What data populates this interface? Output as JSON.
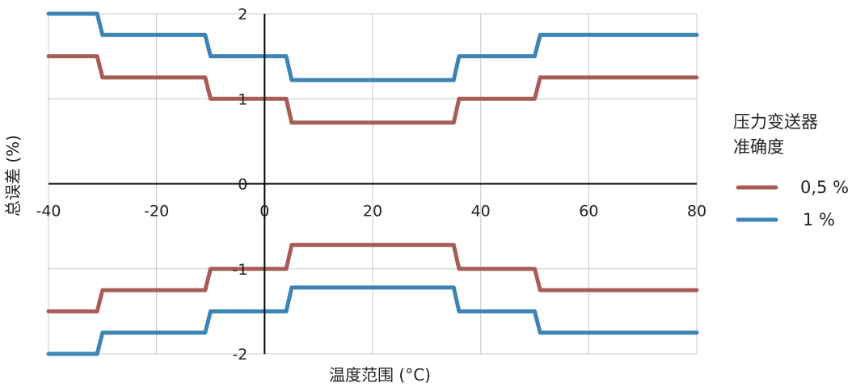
{
  "chart_data": {
    "type": "line",
    "xlabel": "温度范围 (°C)",
    "ylabel": "总误差 (%)",
    "xlim": [
      -40,
      80
    ],
    "ylim": [
      -2,
      2
    ],
    "xticks": [
      -40,
      -20,
      0,
      20,
      40,
      60,
      80
    ],
    "yticks": [
      -2,
      -1,
      0,
      1,
      2
    ],
    "grid": true,
    "legend": {
      "title_lines": [
        "压力变送器",
        "准确度"
      ],
      "placement": "right"
    },
    "series": [
      {
        "name": "0,5 %",
        "color": "#a75d57",
        "curves": [
          [
            [
              -40,
              1.5
            ],
            [
              -31,
              1.5
            ],
            [
              -30,
              1.25
            ],
            [
              -11,
              1.25
            ],
            [
              -10,
              1.0
            ],
            [
              4,
              1.0
            ],
            [
              5,
              0.72
            ],
            [
              35,
              0.72
            ],
            [
              36,
              1.0
            ],
            [
              50,
              1.0
            ],
            [
              51,
              1.25
            ],
            [
              80,
              1.25
            ]
          ],
          [
            [
              -40,
              -1.5
            ],
            [
              -31,
              -1.5
            ],
            [
              -30,
              -1.25
            ],
            [
              -11,
              -1.25
            ],
            [
              -10,
              -1.0
            ],
            [
              4,
              -1.0
            ],
            [
              5,
              -0.72
            ],
            [
              35,
              -0.72
            ],
            [
              36,
              -1.0
            ],
            [
              50,
              -1.0
            ],
            [
              51,
              -1.25
            ],
            [
              80,
              -1.25
            ]
          ]
        ]
      },
      {
        "name": "1 %",
        "color": "#3b84b4",
        "curves": [
          [
            [
              -40,
              2.0
            ],
            [
              -31,
              2.0
            ],
            [
              -30,
              1.75
            ],
            [
              -11,
              1.75
            ],
            [
              -10,
              1.5
            ],
            [
              4,
              1.5
            ],
            [
              5,
              1.22
            ],
            [
              35,
              1.22
            ],
            [
              36,
              1.5
            ],
            [
              50,
              1.5
            ],
            [
              51,
              1.75
            ],
            [
              80,
              1.75
            ]
          ],
          [
            [
              -40,
              -2.0
            ],
            [
              -31,
              -2.0
            ],
            [
              -30,
              -1.75
            ],
            [
              -11,
              -1.75
            ],
            [
              -10,
              -1.5
            ],
            [
              4,
              -1.5
            ],
            [
              5,
              -1.22
            ],
            [
              35,
              -1.22
            ],
            [
              36,
              -1.5
            ],
            [
              50,
              -1.5
            ],
            [
              51,
              -1.75
            ],
            [
              80,
              -1.75
            ]
          ]
        ]
      }
    ]
  }
}
